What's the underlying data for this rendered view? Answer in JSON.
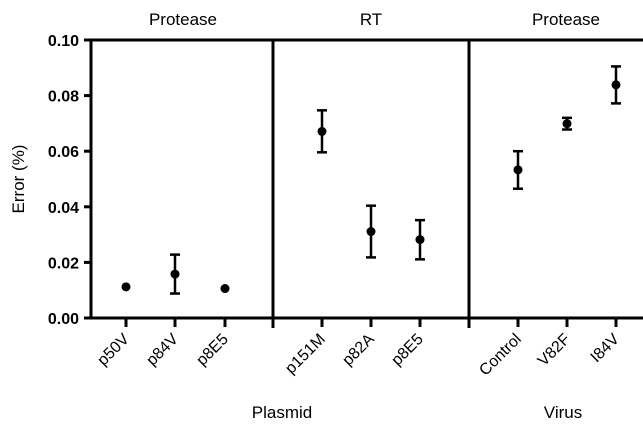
{
  "chart_data": {
    "type": "scatter",
    "ylabel": "Error (%)",
    "ylim": [
      0,
      0.1
    ],
    "yticks": [
      "0.00",
      "0.02",
      "0.04",
      "0.06",
      "0.08",
      "0.10"
    ],
    "error_bars": true,
    "panels": [
      {
        "title": "Protease",
        "categories": [
          "p50V",
          "p84V",
          "p8E5"
        ],
        "values": [
          0.0112,
          0.0158,
          0.0106
        ],
        "error_low": [
          0.0112,
          0.0088,
          0.0106
        ],
        "error_high": [
          0.0112,
          0.0228,
          0.0106
        ]
      },
      {
        "title": "RT",
        "categories": [
          "p151M",
          "p82A",
          "p8E5"
        ],
        "values": [
          0.0671,
          0.0311,
          0.0282
        ],
        "error_low": [
          0.0596,
          0.0218,
          0.0211
        ],
        "error_high": [
          0.0747,
          0.0404,
          0.0352
        ]
      },
      {
        "title": "Protease",
        "categories": [
          "Control",
          "V82F",
          "I84V"
        ],
        "values": [
          0.0533,
          0.0699,
          0.0839
        ],
        "error_low": [
          0.0465,
          0.0678,
          0.0772
        ],
        "error_high": [
          0.06,
          0.072,
          0.0905
        ]
      }
    ],
    "group_labels": [
      "Plasmid",
      "Virus"
    ],
    "grid": false,
    "legend": "none"
  }
}
